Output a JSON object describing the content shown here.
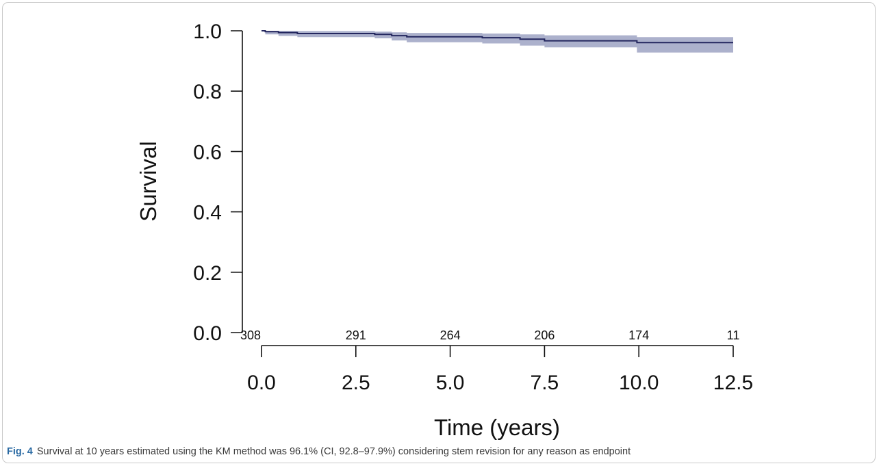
{
  "chart_data": {
    "type": "line",
    "xlabel": "Time (years)",
    "ylabel": "Survival",
    "xlim": [
      0,
      12.5
    ],
    "ylim": [
      0,
      1
    ],
    "x_ticks": [
      "0.0",
      "2.5",
      "5.0",
      "7.5",
      "10.0",
      "12.5"
    ],
    "y_ticks": [
      "0.0",
      "0.2",
      "0.4",
      "0.6",
      "0.8",
      "1.0"
    ],
    "series": [
      {
        "x": [
          0,
          0.1,
          0.45,
          0.95,
          3.0,
          3.45,
          3.85,
          5.85,
          6.85,
          7.5,
          9.95,
          12.5
        ],
        "y": [
          1.0,
          0.997,
          0.994,
          0.991,
          0.988,
          0.984,
          0.98,
          0.977,
          0.972,
          0.967,
          0.961,
          0.961
        ],
        "lower": [
          1.0,
          0.988,
          0.983,
          0.979,
          0.975,
          0.968,
          0.962,
          0.958,
          0.951,
          0.945,
          0.928,
          0.928
        ],
        "upper": [
          1.0,
          1.0,
          1.0,
          0.999,
          0.997,
          0.995,
          0.993,
          0.991,
          0.988,
          0.985,
          0.979,
          0.979
        ]
      }
    ],
    "number_at_risk": {
      "x": [
        0,
        2.5,
        5.0,
        7.5,
        10.0,
        12.5
      ],
      "labels": [
        "308",
        "291",
        "264",
        "206",
        "174",
        "11"
      ]
    },
    "line_color": "#23265e",
    "band_color": "#a3a8c6"
  },
  "caption": {
    "fig_label": "Fig. 4",
    "text": "Survival at 10 years estimated using the KM method was 96.1% (CI, 92.8–97.9%) considering stem revision for any reason as endpoint"
  }
}
